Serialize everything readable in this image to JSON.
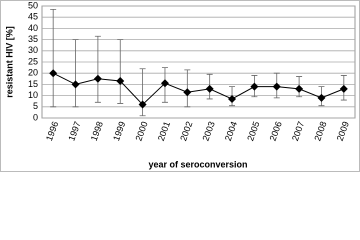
{
  "chart_data": {
    "type": "line",
    "categories": [
      "1996",
      "1997",
      "1998",
      "1999",
      "2000",
      "2001",
      "2002",
      "2003",
      "2004",
      "2005",
      "2006",
      "2007",
      "2008",
      "2009"
    ],
    "series": [
      {
        "color": "#000000",
        "values": [
          20,
          15,
          17.5,
          16.5,
          6,
          15.5,
          11.5,
          13,
          8.5,
          14,
          14,
          13,
          9,
          13
        ],
        "lower": [
          5,
          5,
          7,
          6.5,
          1,
          7,
          5,
          8.5,
          5.5,
          9.5,
          9,
          9.5,
          5.5,
          8
        ],
        "upper": [
          48.5,
          35,
          36.5,
          35,
          22,
          22.5,
          21.5,
          19.5,
          14,
          19,
          20,
          18.5,
          14,
          19
        ]
      }
    ],
    "y_label": "resistant HIV [%]",
    "x_label": "year of seroconversion",
    "ylim": [
      0,
      50
    ],
    "yticks": [
      0,
      5,
      10,
      15,
      20,
      25,
      30,
      35,
      40,
      45,
      50
    ],
    "grid": true
  }
}
